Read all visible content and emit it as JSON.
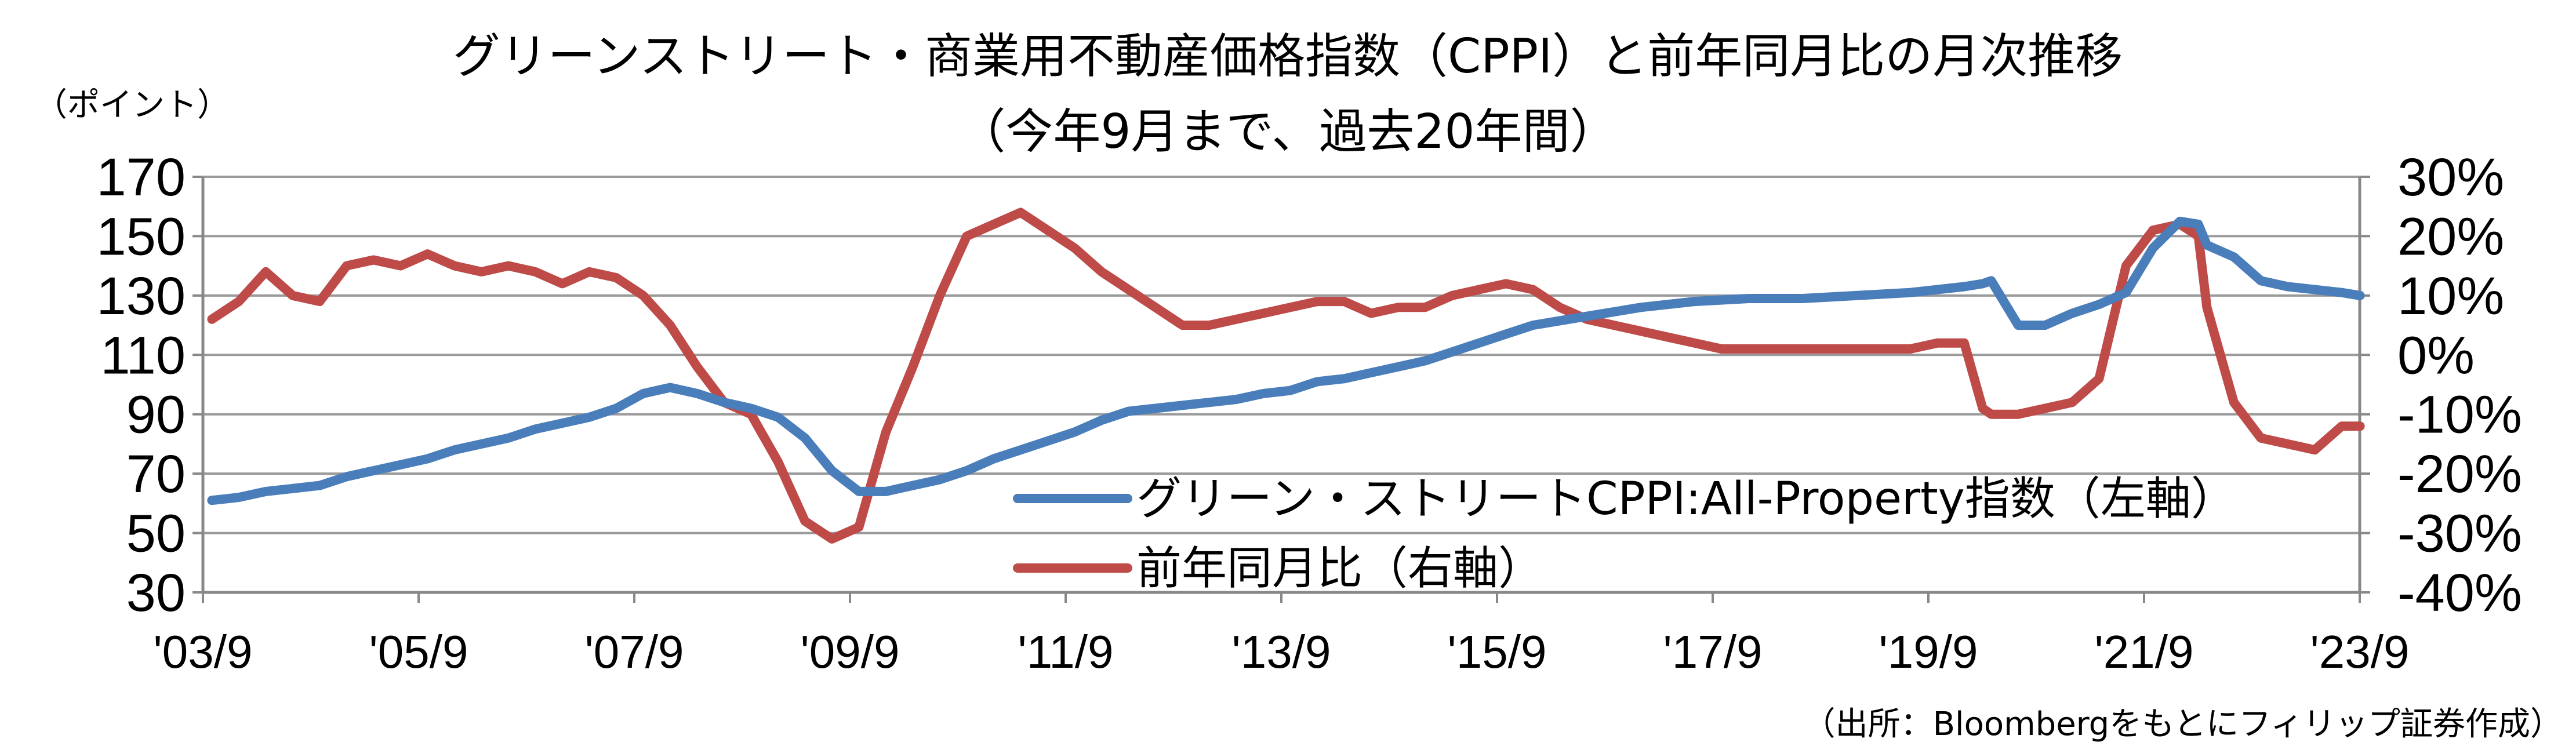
{
  "chart_data": {
    "type": "line",
    "title_line1": "グリーンストリート・商業用不動産価格指数（CPPI）と前年同月比の月次推移",
    "title_line2": "（今年9月まで、過去20年間）",
    "ylabel_left": "（ポイント）",
    "source": "（出所：Bloombergをもとにフィリップ証券作成）",
    "x_ticks": [
      "'03/9",
      "'05/9",
      "'07/9",
      "'09/9",
      "'11/9",
      "'13/9",
      "'15/9",
      "'17/9",
      "'19/9",
      "'21/9",
      "'23/9"
    ],
    "y_left_ticks": [
      "170",
      "150",
      "130",
      "110",
      "90",
      "70",
      "50",
      "30"
    ],
    "y_right_ticks": [
      "30%",
      "20%",
      "10%",
      "0%",
      "-10%",
      "-20%",
      "-30%",
      "-40%"
    ],
    "y_left_lim": [
      30,
      170
    ],
    "y_right_lim": [
      -40,
      30
    ],
    "x_start": 2003.667,
    "x_end": 2023.667,
    "grid": true,
    "legend_position": "bottom-center",
    "colors": {
      "index": "#4a7ebb",
      "yoy": "#be4b48"
    },
    "series": [
      {
        "name": "グリーン・ストリートCPPI:All-Property指数（左軸）",
        "axis": "left",
        "color": "#4a7ebb",
        "x": [
          2003.75,
          2004.0,
          2004.25,
          2004.5,
          2004.75,
          2005.0,
          2005.25,
          2005.5,
          2005.75,
          2006.0,
          2006.25,
          2006.5,
          2006.75,
          2007.0,
          2007.25,
          2007.5,
          2007.75,
          2008.0,
          2008.25,
          2008.5,
          2008.75,
          2009.0,
          2009.25,
          2009.5,
          2009.75,
          2010.0,
          2010.25,
          2010.5,
          2010.75,
          2011.0,
          2011.25,
          2011.5,
          2011.75,
          2012.0,
          2012.25,
          2012.5,
          2012.75,
          2013.0,
          2013.25,
          2013.5,
          2013.75,
          2014.0,
          2014.25,
          2014.5,
          2014.75,
          2015.0,
          2015.25,
          2015.5,
          2015.75,
          2016.0,
          2016.5,
          2017.0,
          2017.5,
          2018.0,
          2018.5,
          2019.0,
          2019.5,
          2019.75,
          2020.0,
          2020.17,
          2020.25,
          2020.5,
          2020.75,
          2021.0,
          2021.25,
          2021.5,
          2021.75,
          2022.0,
          2022.17,
          2022.25,
          2022.5,
          2022.75,
          2023.0,
          2023.25,
          2023.5,
          2023.67
        ],
        "values": [
          61,
          62,
          64,
          65,
          66,
          69,
          71,
          73,
          75,
          78,
          80,
          82,
          85,
          87,
          89,
          92,
          97,
          99,
          97,
          94,
          92,
          89,
          82,
          71,
          64,
          64,
          66,
          68,
          71,
          75,
          78,
          81,
          84,
          88,
          91,
          92,
          93,
          94,
          95,
          97,
          98,
          101,
          102,
          104,
          106,
          108,
          111,
          114,
          117,
          120,
          123,
          126,
          128,
          129,
          129,
          130,
          131,
          132,
          133,
          134,
          135,
          120,
          120,
          124,
          127,
          131,
          146,
          155,
          154,
          147,
          143,
          135,
          133,
          132,
          131,
          130
        ]
      },
      {
        "name": "前年同月比（右軸）",
        "axis": "right",
        "color": "#be4b48",
        "x": [
          2003.75,
          2004.0,
          2004.25,
          2004.5,
          2004.75,
          2005.0,
          2005.25,
          2005.5,
          2005.75,
          2006.0,
          2006.25,
          2006.5,
          2006.75,
          2007.0,
          2007.25,
          2007.5,
          2007.75,
          2008.0,
          2008.25,
          2008.5,
          2008.75,
          2009.0,
          2009.25,
          2009.5,
          2009.75,
          2010.0,
          2010.25,
          2010.5,
          2010.75,
          2011.0,
          2011.25,
          2011.5,
          2011.75,
          2012.0,
          2012.25,
          2012.5,
          2012.75,
          2013.0,
          2013.25,
          2013.5,
          2013.75,
          2014.0,
          2014.25,
          2014.5,
          2014.75,
          2015.0,
          2015.25,
          2015.5,
          2015.75,
          2016.0,
          2016.25,
          2016.5,
          2016.75,
          2017.0,
          2017.25,
          2017.5,
          2017.75,
          2018.0,
          2018.25,
          2018.5,
          2018.75,
          2019.0,
          2019.25,
          2019.5,
          2019.75,
          2020.0,
          2020.17,
          2020.25,
          2020.5,
          2020.75,
          2021.0,
          2021.25,
          2021.5,
          2021.75,
          2022.0,
          2022.17,
          2022.25,
          2022.5,
          2022.75,
          2023.0,
          2023.25,
          2023.5,
          2023.67
        ],
        "values": [
          6,
          9,
          14,
          10,
          9,
          15,
          16,
          15,
          17,
          15,
          14,
          15,
          14,
          12,
          14,
          13,
          10,
          5,
          -2,
          -8,
          -10,
          -18,
          -28,
          -31,
          -29,
          -13,
          -2,
          10,
          20,
          22,
          24,
          21,
          18,
          14,
          11,
          8,
          5,
          5,
          6,
          7,
          8,
          9,
          9,
          7,
          8,
          8,
          10,
          11,
          12,
          11,
          8,
          6,
          5,
          4,
          3,
          2,
          1,
          1,
          1,
          1,
          1,
          1,
          1,
          1,
          2,
          2,
          -9,
          -10,
          -10,
          -9,
          -8,
          -4,
          15,
          21,
          22,
          20,
          8,
          -8,
          -14,
          -15,
          -16,
          -12,
          -12
        ]
      }
    ]
  }
}
